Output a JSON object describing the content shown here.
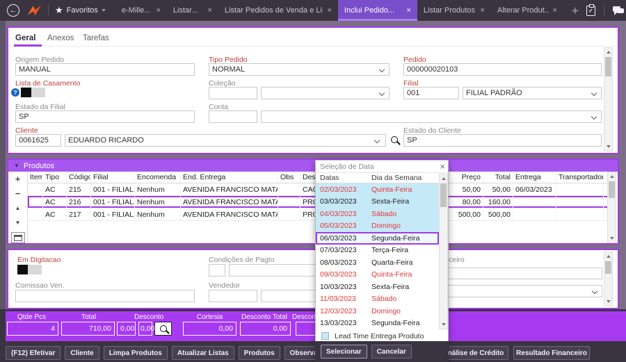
{
  "topbar": {
    "favorites": "Favoritos",
    "tabs": [
      {
        "label": "e-Mille...",
        "active": false
      },
      {
        "label": "Listar...",
        "active": false
      },
      {
        "label": "Listar Pedidos de Venda e Lista...",
        "active": false
      },
      {
        "label": "Inclui Pedido...",
        "active": true
      },
      {
        "label": "Listar Produtos...",
        "active": false
      },
      {
        "label": "Alterar Produt...",
        "active": false
      }
    ]
  },
  "form": {
    "tabs": [
      {
        "label": "Geral",
        "active": true
      },
      {
        "label": "Anexos",
        "active": false
      },
      {
        "label": "Tarefas",
        "active": false
      }
    ],
    "origem_label": "Origem Pedido",
    "origem_value": "MANUAL",
    "tipo_label": "Tipo Pedido",
    "tipo_value": "NORMAL",
    "pedido_label": "Pedido",
    "pedido_value": "000000020103",
    "lista_label": "Lista de Casamento",
    "colecao_label": "Coleção",
    "filial_label": "Filial",
    "filial_code": "001",
    "filial_desc": "FILIAL PADRÃO",
    "estado_filial_label": "Estado da Filial",
    "estado_filial_value": "SP",
    "conta_label": "Conta",
    "cliente_label": "Cliente",
    "cliente_code": "0061625",
    "cliente_name": "EDUARDO RICARDO",
    "estado_cliente_label": "Estado do Cliente",
    "estado_cliente_value": "SP"
  },
  "produtos": {
    "title": "Produtos",
    "columns": [
      "Item",
      "Tipo",
      "Código",
      "Filial",
      "Encomenda",
      "End. Entrega",
      "Obs",
      "Desc",
      "Preço",
      "Total",
      "Entrega",
      "Transportadora"
    ],
    "rows": [
      {
        "cells": [
          "",
          "AC",
          "215",
          "001 - FILIAL...",
          "Nenhum",
          "AVENIDA FRANCISCO MATARAZ...",
          "",
          "CAC",
          "50,00",
          "50,00",
          "06/03/2023",
          ""
        ],
        "selected": false
      },
      {
        "cells": [
          "",
          "AC",
          "216",
          "001 - FILIAL...",
          "Nenhum",
          "AVENIDA FRANCISCO MATARAZ...",
          "",
          "PRO",
          "80,00",
          "160,00",
          "",
          ""
        ],
        "selected": true
      },
      {
        "cells": [
          "",
          "AC",
          "217",
          "001 - FILIAL...",
          "Nenhum",
          "AVENIDA FRANCISCO MATARAZ...",
          "",
          "PRO",
          "500,00",
          "500,00",
          "",
          ""
        ],
        "selected": false
      }
    ]
  },
  "detalhes": {
    "em_digitacao_label": "Em Digitacao",
    "condicoes_label": "Condições de Pagto",
    "comissao_label": "Comissao Ven.",
    "vendedor_label": "Vendedor",
    "right_label_fragment": "ceiro"
  },
  "totais": {
    "qtde_label": "Qtde Pcs",
    "qtde_value": "4",
    "total_label": "Total",
    "total_value": "710,00",
    "desconto_label": "Desconto",
    "desconto_pct": "0,00",
    "desconto_valor": "0,00",
    "cortesia_label": "Cortesia",
    "cortesia_value": "0,00",
    "desconto_total_label": "Desconto Total",
    "desconto_total_value": "0,00",
    "desconto_cut_label": "Descont"
  },
  "footer": {
    "left_buttons": [
      "(F12) Efetivar",
      "Cliente",
      "Limpa Produtos",
      "Atualizar Listas",
      "Produtos",
      "Observações do Item"
    ],
    "credit_button": "Análise de Crédito",
    "result_button": "Resultado Financeiro"
  },
  "dialog": {
    "title": "Seleção de Data",
    "col_datas": "Datas",
    "col_dia": "Dia da Semana",
    "rows": [
      {
        "date": "02/03/2023",
        "day": "Quinta-Feira",
        "red": true,
        "lead": true,
        "selected": false
      },
      {
        "date": "03/03/2023",
        "day": "Sexta-Feira",
        "red": false,
        "lead": true,
        "selected": false
      },
      {
        "date": "04/03/2023",
        "day": "Sábado",
        "red": true,
        "lead": true,
        "selected": false
      },
      {
        "date": "05/03/2023",
        "day": "Domingo",
        "red": true,
        "lead": true,
        "selected": false
      },
      {
        "date": "06/03/2023",
        "day": "Segunda-Feira",
        "red": false,
        "lead": false,
        "selected": true
      },
      {
        "date": "07/03/2023",
        "day": "Terça-Feira",
        "red": false,
        "lead": false,
        "selected": false
      },
      {
        "date": "08/03/2023",
        "day": "Quarta-Feira",
        "red": false,
        "lead": false,
        "selected": false
      },
      {
        "date": "09/03/2023",
        "day": "Quinta-Feira",
        "red": true,
        "lead": false,
        "selected": false
      },
      {
        "date": "10/03/2023",
        "day": "Sexta-Feira",
        "red": false,
        "lead": false,
        "selected": false
      },
      {
        "date": "11/03/2023",
        "day": "Sábado",
        "red": true,
        "lead": false,
        "selected": false
      },
      {
        "date": "12/03/2023",
        "day": "Domingo",
        "red": true,
        "lead": false,
        "selected": false
      },
      {
        "date": "13/03/2023",
        "day": "Segunda-Feira",
        "red": false,
        "lead": false,
        "selected": false
      }
    ],
    "legend": "Lead Time Entrega Produto",
    "select_button": "Selecionar",
    "cancel_button": "Cancelar"
  },
  "colors": {
    "accent_purple": "#a33ae8",
    "section_header_purple": "#a757f0",
    "totals_bar_purple": "#a73af0",
    "active_tab_purple": "#7a4ec8",
    "topbar_bg": "#3a3441",
    "workspace_bg": "#7d6e88",
    "required_label_red": "#b8433b",
    "date_red": "#e53636",
    "lead_time_blue": "#c6e9f8",
    "logo_orange": "#f26522"
  }
}
